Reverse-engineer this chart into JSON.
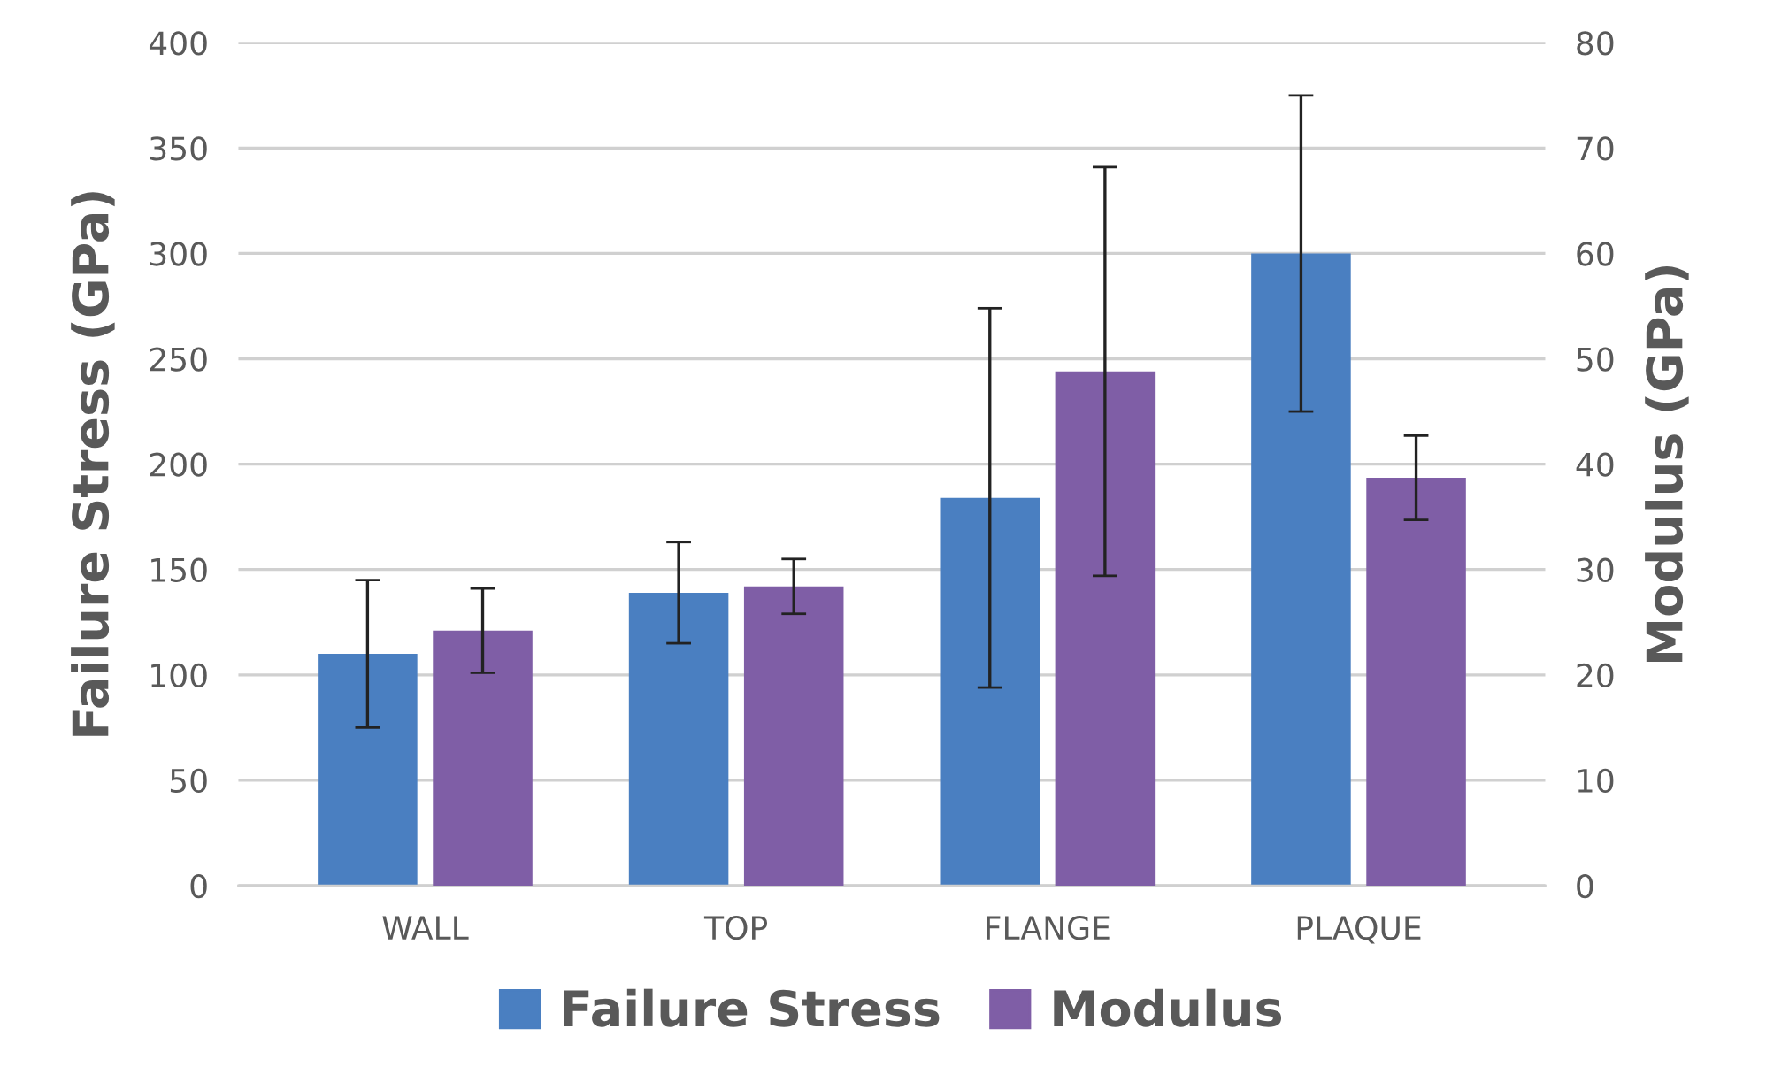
{
  "chart_data": {
    "type": "bar",
    "ylabel": "Failure Stress (GPa)",
    "y2label": "Modulus (GPa)",
    "categories": [
      "WALL",
      "TOP",
      "FLANGE",
      "PLAQUE"
    ],
    "series": [
      {
        "name": "Failure Stress",
        "color": "#4a7fc1",
        "values": [
          110,
          139,
          184,
          300
        ],
        "errors": [
          35,
          24,
          90,
          75
        ]
      },
      {
        "name": "Modulus",
        "color": "#7f5ea6",
        "axis": "y2",
        "values": [
          24.2,
          28.4,
          48.8,
          38.7
        ],
        "errors": [
          4,
          2.6,
          19.4,
          4
        ]
      }
    ],
    "ylim": [
      0,
      400
    ],
    "yticks": [
      0,
      50,
      100,
      150,
      200,
      250,
      300,
      350,
      400
    ],
    "y2lim": [
      0,
      80
    ],
    "y2ticks": [
      0,
      10,
      20,
      30,
      40,
      50,
      60,
      70,
      80
    ],
    "grid": "y",
    "legend": "bottom"
  }
}
